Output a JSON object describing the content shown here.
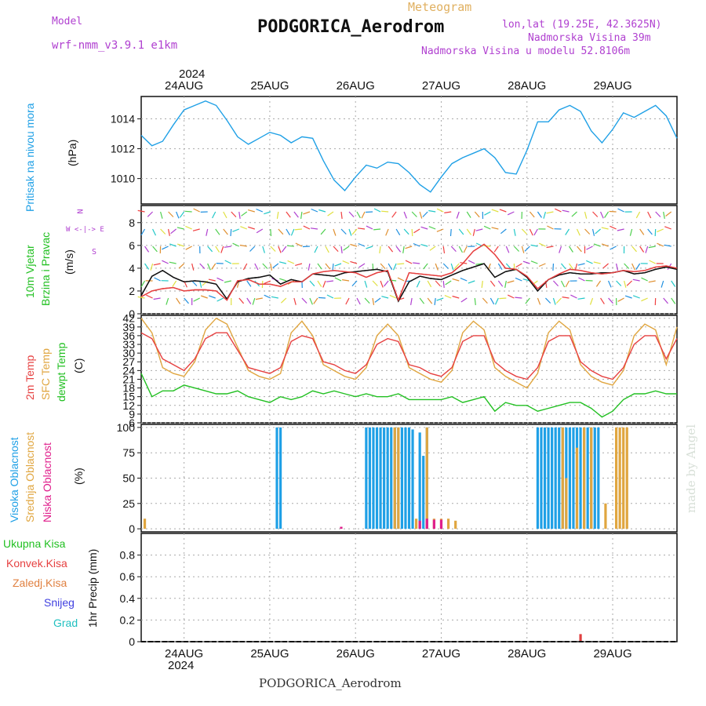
{
  "header": {
    "model_label": "Model",
    "model_name": "wrf-nmm_v3.9.1 e1km",
    "meteogram": "Meteogram",
    "station": "PODGORICA_Aerodrom",
    "lonlat": "lon,lat (19.25E, 42.3625N)",
    "elevation": "Nadmorska Visina 39m",
    "model_elevation": "Nadmorska Visina u modelu 52.8106m",
    "year_top": "2024",
    "year_bottom": "2024",
    "footer": "PODGORICA_Aerodrom",
    "credit": "made by Angel"
  },
  "colors": {
    "pressure": "#1fa0e6",
    "temp2m": "#e64040",
    "sfc": "#e0a640",
    "dewpt": "#22c022",
    "high_cloud": "#1fa0e6",
    "mid_cloud": "#e0a640",
    "low_cloud": "#e0208c",
    "precip": "#e04040",
    "wind_label": "#22c022",
    "dir_label": "#b040d0",
    "snow": "#4040e0",
    "grad": "#20c0c0"
  },
  "labels": {
    "pressure_a": "Pritisak na nivou mora",
    "pressure_b": "(hPa)",
    "wind_a": "10m Vjetar",
    "wind_b": "Brzina i Pravac",
    "wind_c": "(m/s)",
    "wind_dir_n": "N",
    "wind_dir_ew": "W <-|-> E",
    "wind_dir_s": "S",
    "temp_a": "2m Temp",
    "temp_b": "SFC Temp",
    "temp_c": "dewpt Temp",
    "temp_d": "(C)",
    "cloud_a": "Visoka Oblacnost",
    "cloud_b": "Srednja Oblacnost",
    "cloud_c": "Niska Oblacnost",
    "cloud_d": "(%)",
    "precip_a": "Ukupna Kisa",
    "precip_b": "Konvek.Kisa",
    "precip_c": "Zaledj.Kisa",
    "precip_d": "Snijeg",
    "precip_e": "Grad",
    "precip_unit": "1hr Precip (mm)"
  },
  "chart_data": [
    {
      "type": "line",
      "panel": "pressure",
      "x_unit": "hours from 24AUG 00UTC",
      "categories": [
        "24AUG",
        "25AUG",
        "26AUG",
        "27AUG",
        "28AUG",
        "29AUG"
      ],
      "ylabel": "(hPa)",
      "ylim": [
        1008.3,
        1015.5
      ],
      "yticks": [
        1010,
        1012,
        1014
      ],
      "grid": true,
      "x": [
        -12,
        -9,
        -6,
        -3,
        0,
        3,
        6,
        9,
        12,
        15,
        18,
        21,
        24,
        27,
        30,
        33,
        36,
        39,
        42,
        45,
        48,
        51,
        54,
        57,
        60,
        63,
        66,
        69,
        72,
        75,
        78,
        81,
        84,
        87,
        90,
        93,
        96,
        99,
        102,
        105,
        108,
        111,
        114,
        117,
        120,
        123,
        126,
        129,
        132,
        135,
        138
      ],
      "series": [
        {
          "color_key": "pressure",
          "values": [
            1012.9,
            1012.2,
            1012.5,
            1013.6,
            1014.6,
            1014.9,
            1015.2,
            1014.9,
            1013.9,
            1012.8,
            1012.3,
            1012.7,
            1013.1,
            1012.9,
            1012.4,
            1012.8,
            1012.7,
            1011.2,
            1009.9,
            1009.2,
            1010.1,
            1010.9,
            1010.7,
            1011.1,
            1011.0,
            1010.4,
            1009.6,
            1009.1,
            1010.1,
            1011.0,
            1011.4,
            1011.7,
            1012.0,
            1011.4,
            1010.4,
            1010.3,
            1011.9,
            1013.8,
            1013.8,
            1014.6,
            1014.9,
            1014.5,
            1013.2,
            1012.4,
            1013.3,
            1014.4,
            1014.1,
            1014.5,
            1014.9,
            1014.2,
            1012.7
          ]
        }
      ]
    },
    {
      "type": "line",
      "panel": "wind",
      "ylabel": "(m/s)",
      "ylim": [
        0,
        9.5
      ],
      "yticks": [
        0,
        2,
        4,
        6,
        8
      ],
      "grid": true,
      "x": [
        -12,
        -9,
        -6,
        -3,
        0,
        3,
        6,
        9,
        12,
        15,
        18,
        21,
        24,
        27,
        30,
        33,
        36,
        39,
        42,
        45,
        48,
        51,
        54,
        57,
        60,
        63,
        66,
        69,
        72,
        75,
        78,
        81,
        84,
        87,
        90,
        93,
        96,
        99,
        102,
        105,
        108,
        111,
        114,
        117,
        120,
        123,
        126,
        129,
        132,
        135,
        138
      ],
      "series": [
        {
          "color_key": "speed",
          "color": "#111111",
          "values": [
            1.6,
            3.3,
            3.8,
            3.2,
            2.8,
            2.9,
            2.8,
            2.6,
            1.3,
            2.8,
            3.1,
            3.2,
            3.4,
            2.6,
            3.0,
            2.8,
            3.5,
            3.4,
            3.3,
            3.6,
            3.7,
            3.8,
            3.9,
            3.7,
            1.1,
            2.8,
            3.3,
            3.1,
            3.0,
            3.4,
            3.8,
            4.1,
            4.4,
            3.2,
            3.7,
            3.9,
            3.2,
            2.0,
            3.0,
            3.4,
            3.6,
            3.5,
            3.5,
            3.6,
            3.6,
            3.8,
            3.5,
            3.6,
            3.9,
            4.1,
            3.9
          ]
        },
        {
          "color_key": "gust",
          "color": "#e64040",
          "values": [
            1.5,
            2.0,
            2.2,
            2.3,
            2.0,
            2.1,
            2.1,
            2.0,
            1.2,
            2.9,
            3.0,
            2.6,
            2.6,
            2.4,
            2.8,
            2.8,
            3.5,
            3.7,
            3.8,
            3.7,
            3.6,
            3.2,
            3.6,
            3.8,
            1.2,
            3.6,
            3.5,
            3.4,
            3.3,
            3.6,
            4.4,
            5.5,
            6.1,
            5.2,
            4.0,
            3.9,
            3.3,
            2.2,
            3.0,
            3.5,
            3.9,
            3.8,
            3.6,
            3.5,
            3.6,
            3.8,
            3.7,
            3.8,
            4.1,
            4.2,
            4.0
          ]
        }
      ]
    },
    {
      "type": "line",
      "panel": "temperature",
      "ylabel": "(C)",
      "ylim": [
        6,
        43
      ],
      "yticks": [
        6,
        9,
        12,
        15,
        18,
        21,
        24,
        27,
        30,
        33,
        36,
        39,
        42
      ],
      "grid": true,
      "x": [
        -12,
        -9,
        -6,
        -3,
        0,
        3,
        6,
        9,
        12,
        15,
        18,
        21,
        24,
        27,
        30,
        33,
        36,
        39,
        42,
        45,
        48,
        51,
        54,
        57,
        60,
        63,
        66,
        69,
        72,
        75,
        78,
        81,
        84,
        87,
        90,
        93,
        96,
        99,
        102,
        105,
        108,
        111,
        114,
        117,
        120,
        123,
        126,
        129,
        132,
        135,
        138
      ],
      "series": [
        {
          "color_key": "sfc",
          "values": [
            42,
            37,
            25,
            23,
            22,
            27,
            38,
            42,
            40,
            32,
            24,
            22,
            21,
            23,
            37,
            41,
            36,
            26,
            24,
            22,
            21,
            25,
            36,
            40,
            36,
            25,
            23,
            21,
            20,
            24,
            37,
            41,
            38,
            25,
            22,
            20,
            18,
            23,
            37,
            41,
            38,
            26,
            22,
            20,
            19,
            24,
            36,
            40,
            38,
            26,
            39
          ]
        },
        {
          "color_key": "temp2m",
          "values": [
            37,
            35,
            28,
            26,
            24,
            28,
            35,
            37,
            37,
            31,
            25,
            24,
            23,
            25,
            34,
            36,
            35,
            27,
            26,
            24,
            23,
            26,
            33,
            35,
            34,
            26,
            25,
            23,
            22,
            25,
            34,
            36,
            36,
            27,
            24,
            22,
            21,
            25,
            34,
            36,
            36,
            27,
            24,
            22,
            21,
            25,
            33,
            36,
            36,
            28,
            35
          ]
        },
        {
          "color_key": "dewpt",
          "values": [
            23,
            15,
            17,
            17,
            19,
            18,
            17,
            16,
            16,
            17,
            15,
            14,
            13,
            15,
            14,
            15,
            17,
            16,
            17,
            16,
            15,
            16,
            15,
            15,
            16,
            14,
            14,
            14,
            14,
            15,
            13,
            14,
            15,
            10,
            13,
            12,
            12,
            10,
            11,
            12,
            13,
            13,
            11,
            8,
            10,
            14,
            16,
            16,
            17,
            16,
            16
          ]
        }
      ]
    },
    {
      "type": "bar",
      "panel": "cloud",
      "ylabel": "(%)",
      "ylim": [
        -3,
        103
      ],
      "yticks": [
        0,
        25,
        50,
        75,
        100
      ],
      "grid": true,
      "series": [
        {
          "name": "Visoka Oblacnost",
          "color_key": "high_cloud",
          "x": [
            26,
            27,
            51,
            52,
            53,
            54,
            55,
            56,
            57,
            58,
            59,
            60,
            61,
            62,
            63,
            64,
            66,
            67,
            68,
            99,
            100,
            101,
            102,
            103,
            104,
            105,
            106,
            107,
            108,
            109,
            110,
            111,
            112,
            113,
            114,
            115,
            116
          ],
          "values": [
            100,
            100,
            100,
            100,
            100,
            100,
            100,
            100,
            100,
            100,
            100,
            100,
            100,
            100,
            100,
            98,
            95,
            72,
            100,
            100,
            100,
            100,
            100,
            100,
            100,
            100,
            100,
            100,
            100,
            100,
            100,
            100,
            100,
            100,
            100,
            100,
            100
          ]
        },
        {
          "name": "Srednja Oblacnost",
          "color_key": "mid_cloud",
          "x": [
            -11,
            59,
            60,
            65,
            68,
            70,
            72,
            74,
            76,
            106,
            107,
            110,
            112,
            114,
            118,
            121,
            122,
            123,
            124
          ],
          "values": [
            10,
            100,
            100,
            10,
            100,
            10,
            10,
            10,
            8,
            100,
            50,
            80,
            100,
            100,
            25,
            100,
            100,
            100,
            100
          ]
        },
        {
          "name": "Niska Oblacnost",
          "color_key": "low_cloud",
          "x": [
            44,
            66,
            68,
            70,
            72
          ],
          "values": [
            2,
            8,
            10,
            9,
            9
          ]
        }
      ]
    },
    {
      "type": "bar",
      "panel": "precipitation",
      "ylabel": "1hr Precip (mm)",
      "ylim": [
        0,
        1.0
      ],
      "yticks": [
        0,
        0.2,
        0.4,
        0.6,
        0.8
      ],
      "grid": true,
      "series": [
        {
          "name": "Konvek.Kisa",
          "color_key": "precip",
          "x": [
            111
          ],
          "values": [
            0.07
          ]
        }
      ]
    }
  ]
}
